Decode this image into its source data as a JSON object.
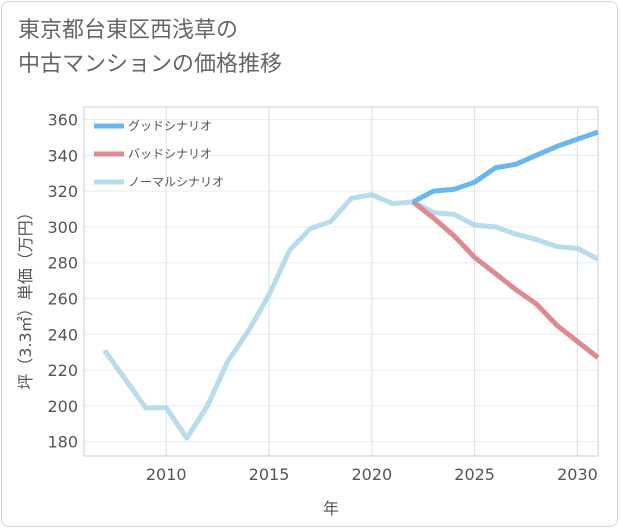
{
  "chart_data": {
    "type": "line",
    "title_lines": [
      "東京都台東区西浅草の",
      "中古マンションの価格推移"
    ],
    "xlabel": "年",
    "ylabel": "坪（3.3㎡）単価（万円）",
    "xlim": [
      2006,
      2031
    ],
    "ylim": [
      172,
      367
    ],
    "x_ticks": [
      2010,
      2015,
      2020,
      2025,
      2030
    ],
    "y_ticks": [
      180,
      200,
      220,
      240,
      260,
      280,
      300,
      320,
      340,
      360
    ],
    "grid": true,
    "legend_position": "top-left",
    "series": [
      {
        "name": "グッドシナリオ",
        "color": "#6cb6ee",
        "x": [
          2022,
          2023,
          2024,
          2025,
          2026,
          2027,
          2028,
          2029,
          2030,
          2031
        ],
        "y": [
          314,
          320,
          321,
          325,
          333,
          335,
          340,
          345,
          349,
          353
        ]
      },
      {
        "name": "バッドシナリオ",
        "color": "#dd8a94",
        "x": [
          2022,
          2023,
          2024,
          2025,
          2026,
          2027,
          2028,
          2029,
          2030,
          2031
        ],
        "y": [
          314,
          305,
          295,
          283,
          274,
          265,
          257,
          245,
          236,
          227
        ]
      },
      {
        "name": "ノーマルシナリオ",
        "color": "#b8dcea",
        "x": [
          2007,
          2008,
          2009,
          2010,
          2011,
          2012,
          2013,
          2014,
          2015,
          2016,
          2017,
          2018,
          2019,
          2020,
          2021,
          2022,
          2023,
          2024,
          2025,
          2026,
          2027,
          2028,
          2029,
          2030,
          2031
        ],
        "y": [
          231,
          215,
          199,
          199,
          182,
          200,
          225,
          242,
          262,
          287,
          299,
          303,
          316,
          318,
          313,
          314,
          308,
          307,
          301,
          300,
          296,
          293,
          289,
          288,
          282
        ]
      }
    ]
  }
}
